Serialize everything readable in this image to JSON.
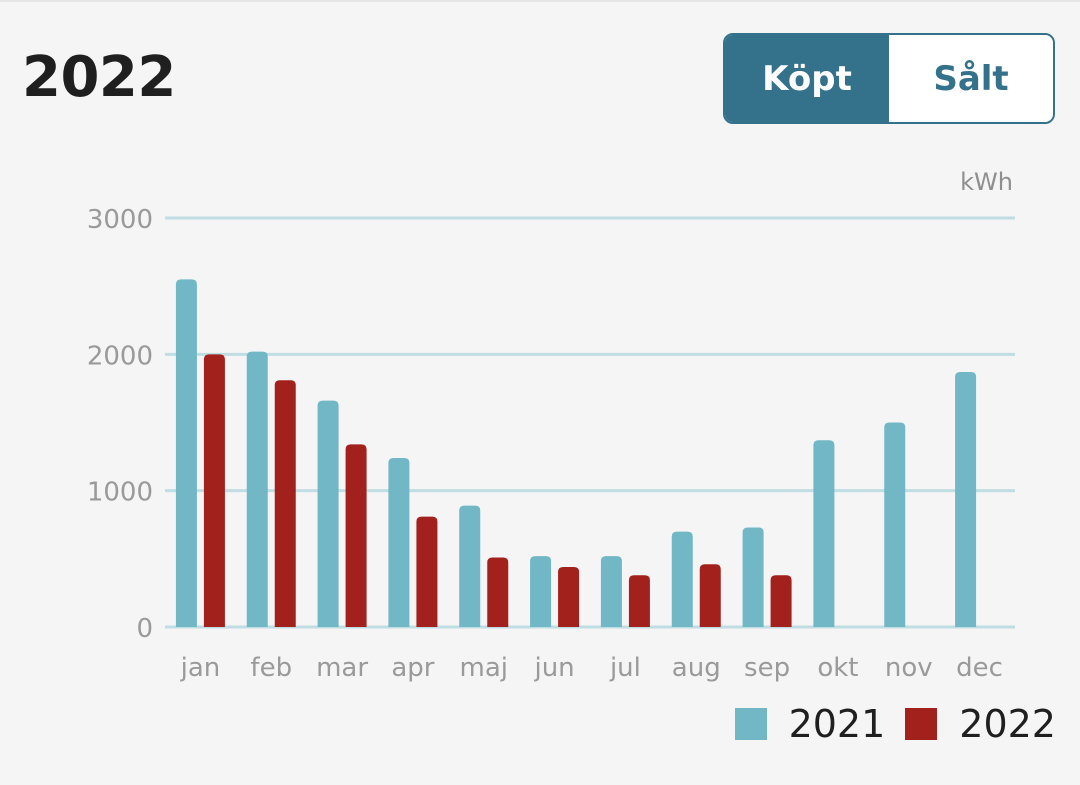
{
  "header": {
    "title": "2022"
  },
  "toggle": {
    "options": [
      {
        "label": "Köpt",
        "active": true
      },
      {
        "label": "Sålt",
        "active": false
      }
    ],
    "active_color": "#34718a"
  },
  "chart_data": {
    "type": "bar",
    "unit": "kWh",
    "categories": [
      "jan",
      "feb",
      "mar",
      "apr",
      "maj",
      "jun",
      "jul",
      "aug",
      "sep",
      "okt",
      "nov",
      "dec"
    ],
    "series": [
      {
        "name": "2021",
        "color": "#72b7c6",
        "values": [
          2550,
          2020,
          1660,
          1240,
          890,
          520,
          520,
          700,
          730,
          1370,
          1500,
          1870
        ]
      },
      {
        "name": "2022",
        "color": "#a3211c",
        "values": [
          2000,
          1810,
          1340,
          810,
          510,
          440,
          380,
          460,
          380,
          null,
          null,
          null
        ]
      }
    ],
    "yticks": [
      0,
      1000,
      2000,
      3000
    ],
    "ylim": [
      0,
      3000
    ],
    "grid": true,
    "legend_position": "bottom-right"
  }
}
